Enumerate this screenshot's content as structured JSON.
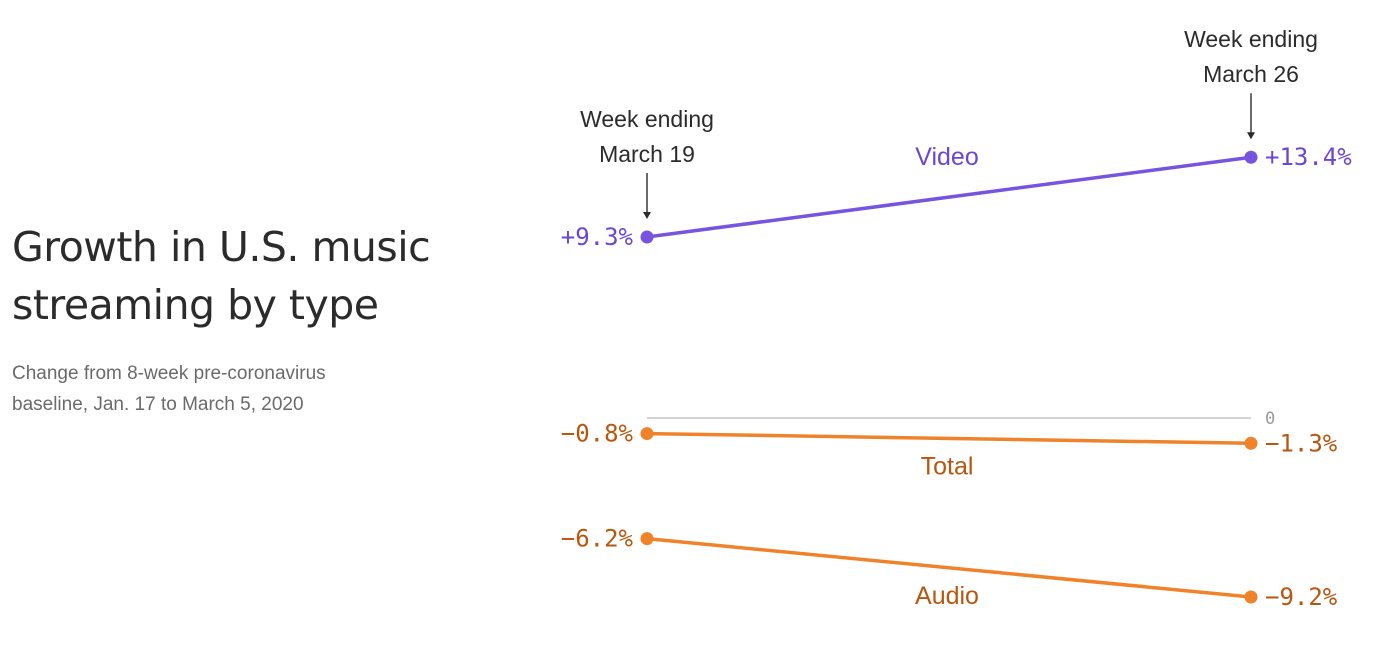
{
  "header": {
    "title_line1": "Growth in U.S. music",
    "title_line2": "streaming by type",
    "subtitle": "Change from 8-week pre-coronavirus baseline, Jan. 17 to March 5, 2020"
  },
  "chart_data": {
    "type": "line",
    "title": "Growth in U.S. music streaming by type",
    "subtitle": "Change from 8-week pre-coronavirus baseline, Jan. 17 to March 5, 2020",
    "periods": [
      {
        "line1": "Week ending",
        "line2": "March 19"
      },
      {
        "line1": "Week ending",
        "line2": "March 26"
      }
    ],
    "series": [
      {
        "name": "Video",
        "values": [
          9.3,
          13.4
        ],
        "labels": [
          "+9.3%",
          "+13.4%"
        ],
        "color": "#7754e0",
        "text_color": "#6a46d6"
      },
      {
        "name": "Total",
        "values": [
          -0.8,
          -1.3
        ],
        "labels": [
          "−0.8%",
          "−1.3%"
        ],
        "color": "#f0832a",
        "text_color": "#b8560f"
      },
      {
        "name": "Audio",
        "values": [
          -6.2,
          -9.2
        ],
        "labels": [
          "−6.2%",
          "−9.2%"
        ],
        "color": "#f0832a",
        "text_color": "#b8560f"
      }
    ],
    "zero_label": "0",
    "ylim": [
      -9.2,
      13.4
    ]
  }
}
